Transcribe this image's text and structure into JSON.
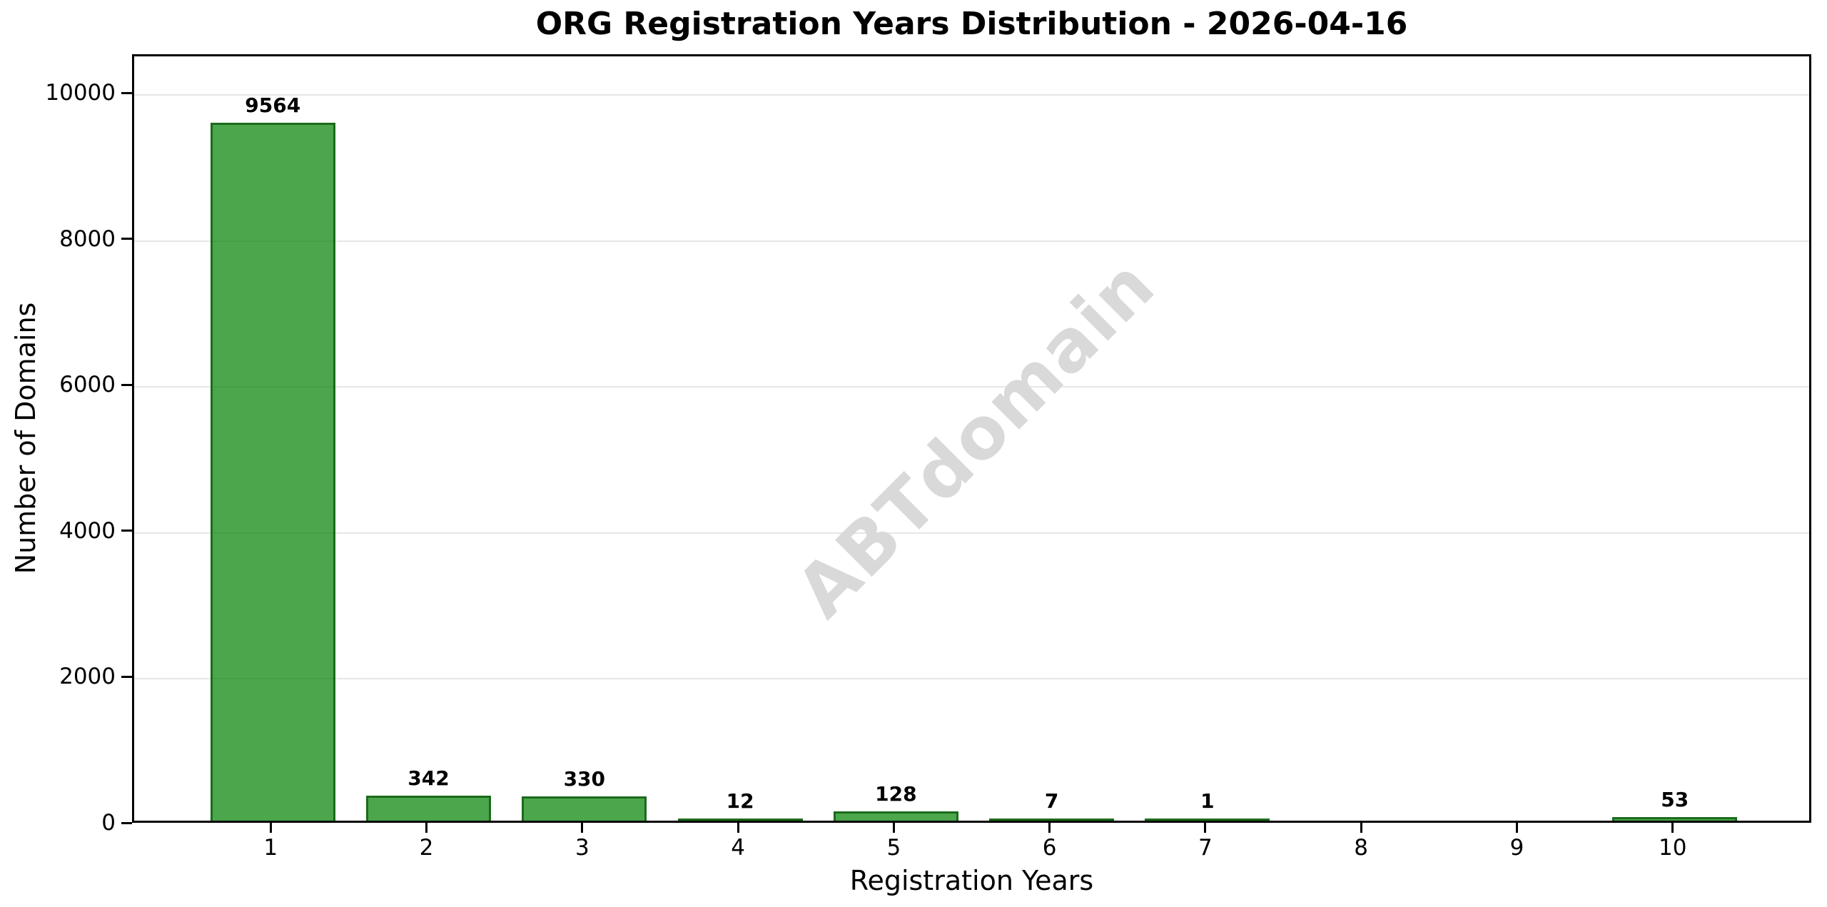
{
  "chart_data": {
    "type": "bar",
    "title": "ORG Registration Years Distribution - 2026-04-16",
    "xlabel": "Registration Years",
    "ylabel": "Number of Domains",
    "categories": [
      "1",
      "2",
      "3",
      "4",
      "5",
      "6",
      "7",
      "8",
      "9",
      "10"
    ],
    "values": [
      9564,
      342,
      330,
      12,
      128,
      7,
      1,
      0,
      0,
      53
    ],
    "bar_labels": [
      "9564",
      "342",
      "330",
      "12",
      "128",
      "7",
      "1",
      "",
      "",
      "53"
    ],
    "ytick_values": [
      0,
      2000,
      4000,
      6000,
      8000,
      10000
    ],
    "ytick_labels": [
      "0",
      "2000",
      "4000",
      "6000",
      "8000",
      "10000"
    ],
    "ylim": [
      0,
      10530
    ],
    "xlim": [
      0.11,
      10.89
    ],
    "grid": "horizontal",
    "legend": "none",
    "watermark": "ABTdomain",
    "colors": {
      "bar_fill": "rgba(0, 128, 0, 0.7)",
      "bar_edge": "#1b6b1b",
      "gridline": "#e6e6e6",
      "spine": "#000000",
      "text": "#000000",
      "watermark": "#d9d9d9",
      "background": "#ffffff"
    }
  }
}
